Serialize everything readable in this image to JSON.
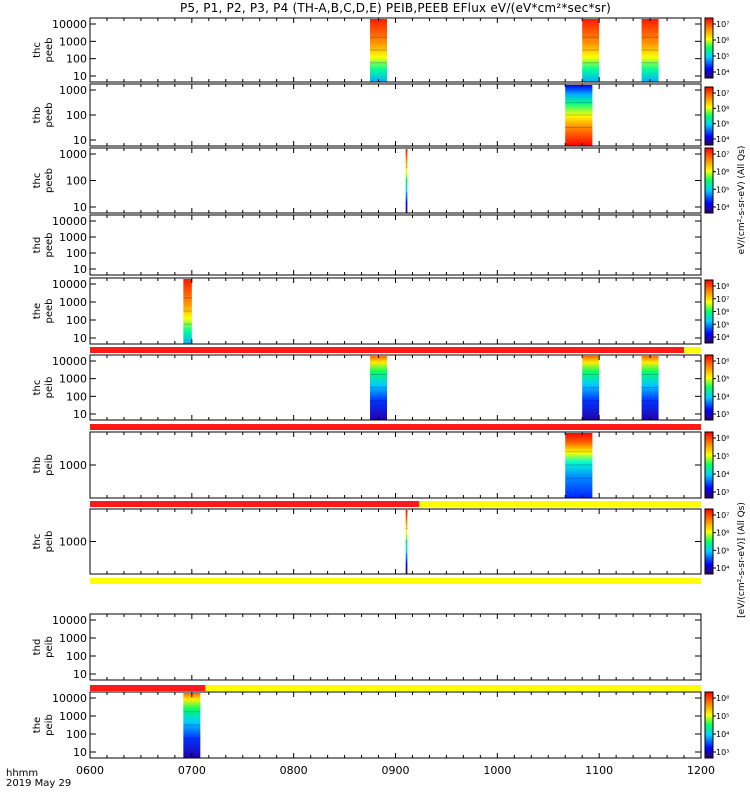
{
  "title": "P5, P1, P2, P3, P4 (TH-A,B,C,D,E) PEIB,PEEB EFlux eV/(eV*cm²*sec*sr)",
  "colors": {
    "flag_red": "#ff1a1a",
    "flag_yellow": "#ffff00"
  },
  "chart_data": {
    "type": "heatmap",
    "x_range": [
      "0600",
      "1200"
    ],
    "x_ticks": [
      "0600",
      "0700",
      "0800",
      "0900",
      "1000",
      "1100",
      "1200"
    ],
    "x_label_lines": [
      "hhmm",
      "2019 May 29"
    ],
    "panels": [
      {
        "label_lines": [
          "thc",
          "peeb"
        ],
        "y_ticks": [
          "10",
          "100",
          "1000",
          "10000"
        ],
        "colorbar_ticks": [
          "10⁴",
          "10⁵",
          "10⁶",
          "10⁷"
        ],
        "spectrogram_blocks": [
          {
            "t_start": "0845",
            "t_end": "0855"
          },
          {
            "t_start": "1050",
            "t_end": "1100"
          },
          {
            "t_start": "1125",
            "t_end": "1135"
          }
        ]
      },
      {
        "label_lines": [
          "thb",
          "peeb"
        ],
        "y_ticks": [
          "10",
          "100",
          "1000"
        ],
        "colorbar_ticks": [
          "10⁴",
          "10⁵",
          "10⁶",
          "10⁷"
        ],
        "spectrogram_blocks": [
          {
            "t_start": "1040",
            "t_end": "1056"
          }
        ]
      },
      {
        "label_lines": [
          "thc",
          "peeb"
        ],
        "y_ticks": [
          "10",
          "100",
          "1000"
        ],
        "colorbar_ticks": [
          "10⁴",
          "10⁵",
          "10⁶",
          "10⁷"
        ],
        "spectrogram_blocks": [
          {
            "t_start": "0906",
            "t_end": "0907"
          }
        ]
      },
      {
        "label_lines": [
          "thd",
          "peeb"
        ],
        "y_ticks": [
          "10",
          "100",
          "1000",
          "10000"
        ],
        "colorbar_ticks": [],
        "spectrogram_blocks": []
      },
      {
        "label_lines": [
          "the",
          "peeb"
        ],
        "y_ticks": [
          "10",
          "100",
          "1000",
          "10000"
        ],
        "colorbar_ticks": [
          "10⁴",
          "10⁵",
          "10⁶",
          "10⁷",
          "10⁸"
        ],
        "spectrogram_blocks": [
          {
            "t_start": "0655",
            "t_end": "0700"
          }
        ]
      },
      {
        "label_lines": [
          "thc",
          "peib"
        ],
        "y_ticks": [
          "10",
          "100",
          "1000",
          "10000"
        ],
        "colorbar_ticks": [
          "10³",
          "10⁴",
          "10⁵",
          "10⁶"
        ],
        "spectrogram_blocks": [
          {
            "t_start": "0845",
            "t_end": "0855"
          },
          {
            "t_start": "1050",
            "t_end": "1100"
          },
          {
            "t_start": "1125",
            "t_end": "1135"
          }
        ]
      },
      {
        "label_lines": [
          "thb",
          "peib"
        ],
        "y_ticks": [
          "1000"
        ],
        "colorbar_ticks": [
          "10³",
          "10⁴",
          "10⁵",
          "10⁶"
        ],
        "spectrogram_blocks": [
          {
            "t_start": "1040",
            "t_end": "1056"
          }
        ]
      },
      {
        "label_lines": [
          "thc",
          "peib"
        ],
        "y_ticks": [
          "1000"
        ],
        "colorbar_ticks": [
          "10⁴",
          "10⁵",
          "10⁶",
          "10⁷"
        ],
        "spectrogram_blocks": [
          {
            "t_start": "0906",
            "t_end": "0907"
          }
        ]
      },
      {
        "label_lines": [
          "thd",
          "peib"
        ],
        "y_ticks": [
          "10",
          "100",
          "1000",
          "10000"
        ],
        "colorbar_ticks": [],
        "spectrogram_blocks": []
      },
      {
        "label_lines": [
          "the",
          "peib"
        ],
        "y_ticks": [
          "10",
          "100",
          "1000",
          "10000"
        ],
        "colorbar_ticks": [
          "10³",
          "10⁴",
          "10⁵",
          "10⁶"
        ],
        "spectrogram_blocks": [
          {
            "t_start": "0655",
            "t_end": "0705"
          }
        ]
      }
    ],
    "flag_bars": [
      {
        "segments": [
          {
            "color": "red",
            "t_start": "0600",
            "t_end": "1150"
          },
          {
            "color": "yellow",
            "t_start": "1150",
            "t_end": "1200"
          }
        ]
      },
      {
        "segments": [
          {
            "color": "red",
            "t_start": "0600",
            "t_end": "1200"
          }
        ]
      },
      {
        "segments": [
          {
            "color": "red",
            "t_start": "0600",
            "t_end": "0914"
          },
          {
            "color": "yellow",
            "t_start": "0914",
            "t_end": "1200"
          }
        ]
      },
      {
        "segments": [
          {
            "color": "yellow",
            "t_start": "0600",
            "t_end": "1200"
          }
        ]
      },
      {
        "segments": [
          {
            "color": "red",
            "t_start": "0600",
            "t_end": "0708"
          },
          {
            "color": "yellow",
            "t_start": "0708",
            "t_end": "1200"
          }
        ]
      }
    ],
    "colorbar_labels": [
      "eV/(cm²-s-sr-eV) (All Qs)",
      "[eV/(cm²-s-sr-eV)] (All Qs)"
    ]
  }
}
